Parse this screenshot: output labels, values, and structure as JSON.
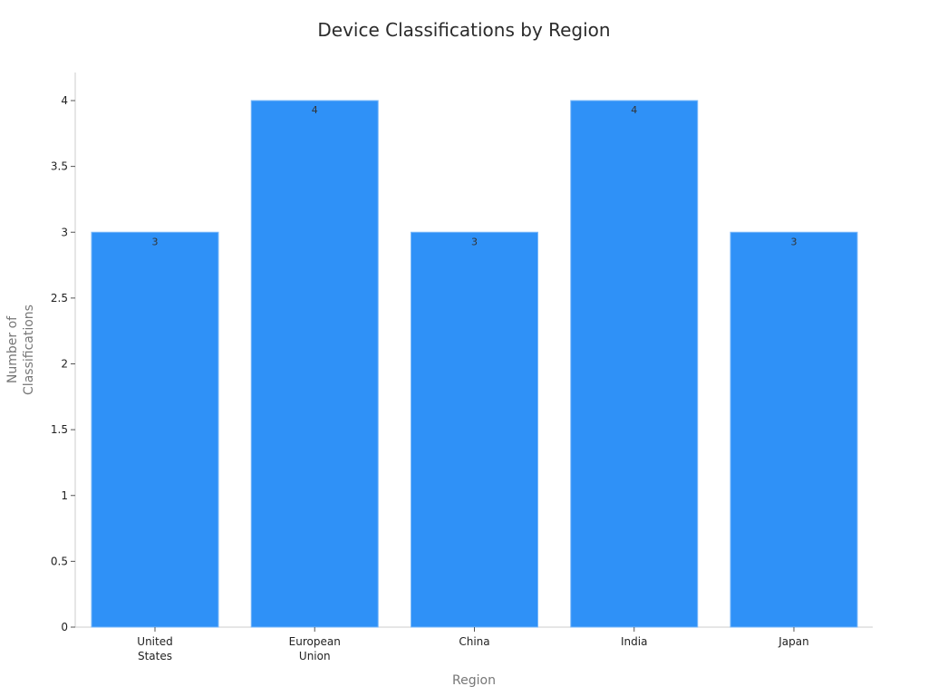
{
  "chart_data": {
    "type": "bar",
    "title": "Device Classifications by Region",
    "xlabel": "Region",
    "ylabel_lines": [
      "Number of",
      "Classifications"
    ],
    "categories": [
      [
        "United",
        "States"
      ],
      [
        "European",
        "Union"
      ],
      [
        "China"
      ],
      [
        "India"
      ],
      [
        "Japan"
      ]
    ],
    "values": [
      3,
      4,
      3,
      4,
      3
    ],
    "data_labels": [
      "3",
      "4",
      "3",
      "4",
      "3"
    ],
    "yticks": [
      "0",
      "0.5",
      "1",
      "1.5",
      "2",
      "2.5",
      "3",
      "3.5",
      "4"
    ],
    "ylim": [
      0,
      4.2
    ],
    "grid": false,
    "colors": {
      "bar": "#2f91f7",
      "bar_edge": "#7ab8f9",
      "axis": "#cccccc",
      "tick": "#555555"
    }
  }
}
